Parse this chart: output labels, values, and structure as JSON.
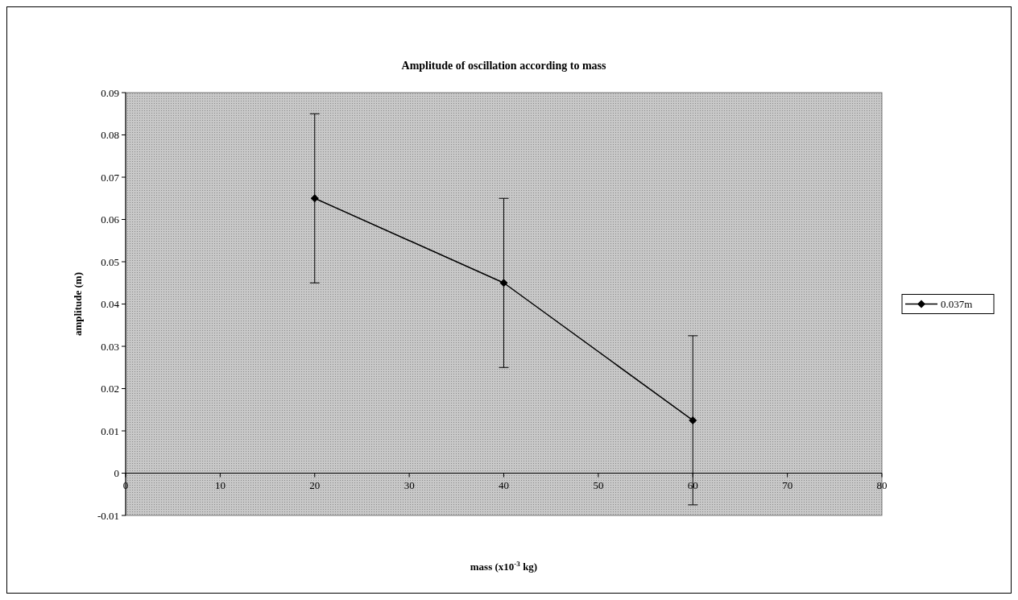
{
  "chart_data": {
    "type": "line",
    "title": "Amplitude of oscillation according to mass",
    "xlabel": "mass (x10$^{-3}$ kg)",
    "ylabel": "amplitude (m)",
    "x": [
      20,
      40,
      60
    ],
    "series": [
      {
        "name": "0.037m",
        "color": "#000000",
        "values": [
          0.065,
          0.045,
          0.0125
        ],
        "errors": [
          0.02,
          0.02,
          0.02
        ]
      }
    ],
    "xlim": [
      0,
      80
    ],
    "xticks": [
      0,
      10,
      20,
      30,
      40,
      50,
      60,
      70,
      80
    ],
    "ylim": [
      -0.01,
      0.09
    ],
    "yticks": [
      -0.01,
      0,
      0.01,
      0.02,
      0.03,
      0.04,
      0.05,
      0.06,
      0.07,
      0.08,
      0.09
    ],
    "legend": "right",
    "marker": "diamond",
    "line_style": "solid",
    "grid": false
  }
}
